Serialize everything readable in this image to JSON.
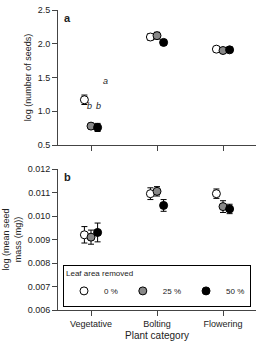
{
  "chart_data": [
    {
      "type": "scatter",
      "title": "a",
      "ylabel": "log (number of seeds)",
      "categories": [
        "Vegetative",
        "Bolting",
        "Flowering"
      ],
      "series": [
        {
          "name": "0 %",
          "color": "white",
          "values": [
            1.17,
            2.1,
            1.92
          ],
          "errors": [
            0.07,
            0.05,
            0.04
          ]
        },
        {
          "name": "25 %",
          "color": "#888888",
          "values": [
            0.78,
            2.12,
            1.9
          ],
          "errors": [
            0.04,
            0.05,
            0.03
          ]
        },
        {
          "name": "50 %",
          "color": "black",
          "values": [
            0.76,
            2.02,
            1.91
          ],
          "errors": [
            0.06,
            0.04,
            0.04
          ]
        }
      ],
      "ylim": [
        0.5,
        2.5
      ],
      "yticks": [
        0.5,
        {
          "value": 1.0,
          "label": "1.0"
        },
        1.5,
        {
          "value": 2.0,
          "label": "2.0"
        },
        2.5
      ],
      "grid": false,
      "tick_labels": "y",
      "marker": "circle",
      "annotations": [
        {
          "text": "a",
          "x": 1.22,
          "y": 1.35
        },
        {
          "text": "b",
          "x": 0.97,
          "y": 0.97
        },
        {
          "text": "b",
          "x": 1.12,
          "y": 0.97
        }
      ]
    },
    {
      "type": "scatter",
      "title": "b",
      "xlabel": "Plant category",
      "ylabel": "log (mean seed\nmass (mg))",
      "categories": [
        "Vegetative",
        "Bolting",
        "Flowering"
      ],
      "series": [
        {
          "name": "0 %",
          "color": "white",
          "values": [
            0.0092,
            0.01095,
            0.01095
          ],
          "errors": [
            0.00035,
            0.00025,
            0.0002
          ]
        },
        {
          "name": "25 %",
          "color": "#888888",
          "values": [
            0.0091,
            0.01105,
            0.0104
          ],
          "errors": [
            0.0003,
            0.0002,
            0.00025
          ]
        },
        {
          "name": "50 %",
          "color": "black",
          "values": [
            0.0093,
            0.01045,
            0.0103
          ],
          "errors": [
            0.0004,
            0.00025,
            0.0002
          ]
        }
      ],
      "ylim": [
        0.006,
        0.012
      ],
      "yticks": [
        0.006,
        0.007,
        0.008,
        0.009,
        {
          "value": 0.01,
          "label": "0.010"
        },
        0.011,
        0.012
      ],
      "grid": false,
      "marker": "circle",
      "legend": "lower center",
      "legend_title": "Leaf area removed"
    }
  ]
}
